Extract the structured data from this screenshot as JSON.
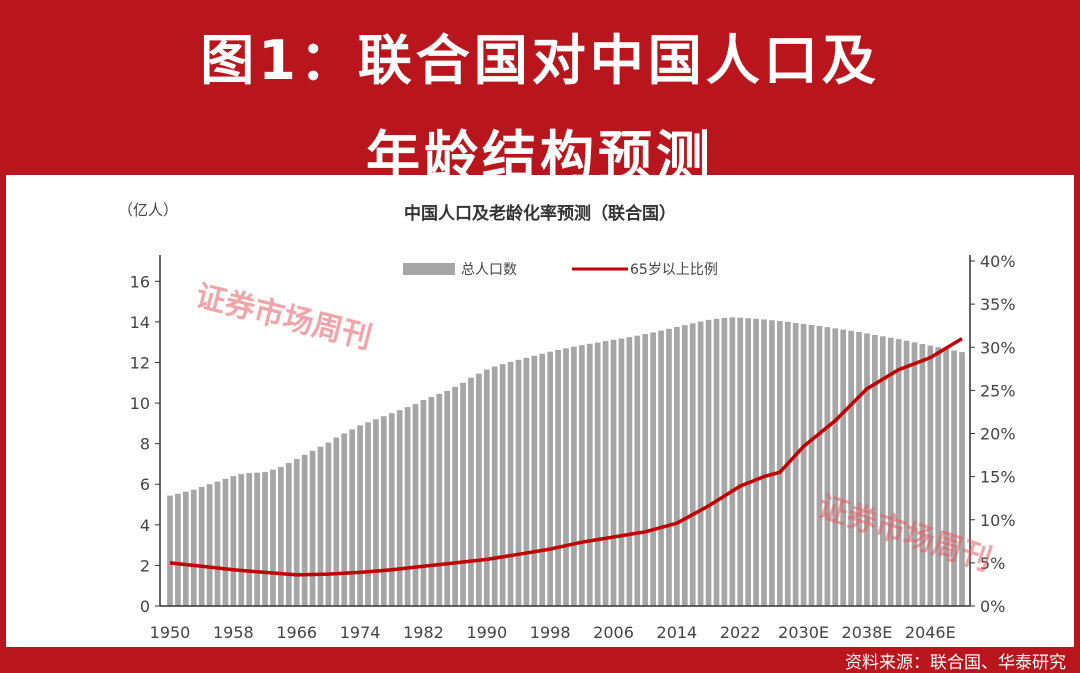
{
  "header": {
    "line1": "图1：联合国对中国人口及",
    "line2": "年龄结构预测"
  },
  "source": "资料来源：联合国、华泰研究",
  "watermark": {
    "text": "证券市场周刊"
  },
  "colors": {
    "background": "#b8161c",
    "bar": "#a6a6a6",
    "line": "#c00000"
  },
  "chart_data": {
    "type": "bar+line",
    "title": "中国人口及老龄化率预测（联合国）",
    "ylabel": "（亿人）",
    "ylim": [
      0,
      17
    ],
    "y2lim": [
      0,
      40
    ],
    "yticks": [
      "0",
      "2",
      "4",
      "6",
      "8",
      "10",
      "12",
      "14",
      "16"
    ],
    "y2ticks": [
      "0%",
      "5%",
      "10%",
      "15%",
      "20%",
      "25%",
      "30%",
      "35%",
      "40%"
    ],
    "xticks": [
      "1950",
      "1958",
      "1966",
      "1974",
      "1982",
      "1990",
      "1998",
      "2006",
      "2014",
      "2022",
      "2030E",
      "2038E",
      "2046E"
    ],
    "legend": {
      "placement": "top-center",
      "bar": "总人口数",
      "line": "65岁以上比例"
    },
    "grid": false,
    "years_start": 1950,
    "years_end": 2050,
    "population": [
      5.44,
      5.53,
      5.63,
      5.73,
      5.87,
      6.0,
      6.13,
      6.27,
      6.4,
      6.5,
      6.55,
      6.57,
      6.6,
      6.72,
      6.85,
      7.05,
      7.25,
      7.45,
      7.65,
      7.85,
      8.05,
      8.3,
      8.5,
      8.7,
      8.9,
      9.05,
      9.2,
      9.35,
      9.5,
      9.65,
      9.8,
      9.95,
      10.15,
      10.3,
      10.45,
      10.6,
      10.8,
      11.0,
      11.25,
      11.45,
      11.65,
      11.8,
      11.92,
      12.03,
      12.13,
      12.23,
      12.33,
      12.43,
      12.53,
      12.62,
      12.7,
      12.78,
      12.85,
      12.92,
      12.98,
      13.05,
      13.12,
      13.18,
      13.25,
      13.32,
      13.4,
      13.48,
      13.57,
      13.66,
      13.75,
      13.84,
      13.93,
      14.02,
      14.1,
      14.15,
      14.2,
      14.22,
      14.21,
      14.18,
      14.15,
      14.12,
      14.08,
      14.04,
      14.0,
      13.95,
      13.9,
      13.85,
      13.8,
      13.74,
      13.68,
      13.62,
      13.56,
      13.5,
      13.43,
      13.36,
      13.29,
      13.22,
      13.15,
      13.07,
      12.99,
      12.91,
      12.83,
      12.75,
      12.67,
      12.59,
      12.51
    ],
    "aged_ratio": {
      "x": [
        1950,
        1954,
        1958,
        1962,
        1966,
        1970,
        1974,
        1978,
        1982,
        1986,
        1990,
        1994,
        1998,
        2002,
        2006,
        2010,
        2014,
        2018,
        2022,
        2025,
        2027,
        2030,
        2034,
        2038,
        2042,
        2046,
        2050
      ],
      "y": [
        5.0,
        4.6,
        4.2,
        3.9,
        3.6,
        3.7,
        3.9,
        4.2,
        4.6,
        5.0,
        5.4,
        6.0,
        6.6,
        7.4,
        8.0,
        8.6,
        9.6,
        11.6,
        13.9,
        15.0,
        15.5,
        18.5,
        21.5,
        25.2,
        27.4,
        28.8,
        31.0
      ]
    }
  }
}
